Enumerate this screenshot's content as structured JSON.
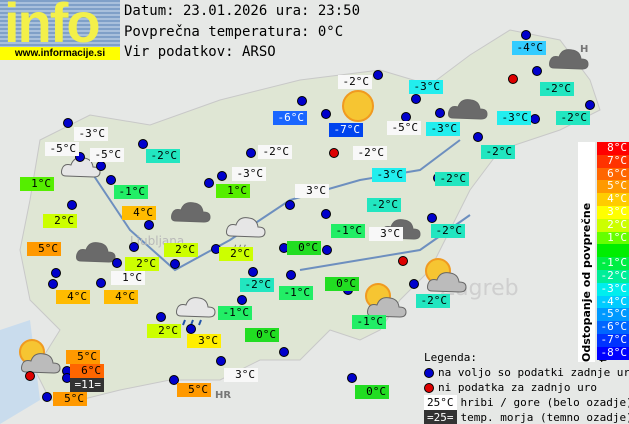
{
  "logo": {
    "text": "info",
    "url": "www.informacije.si"
  },
  "header": {
    "date_line": "Datum: 23.01.2026 ura: 23:50",
    "avg_line": "Povprečna temperatura: 0°C",
    "source_line": "Vir podatkov: ARSO"
  },
  "colors": {
    "white": "#f8f8f8",
    "blue7": "#0044ee",
    "blue6": "#1a66ff",
    "blue4": "#33ccff",
    "cyan3": "#22eeee",
    "teal2": "#22e6c0",
    "green_1": "#22ee66",
    "green0": "#22dd22",
    "green1": "#55ee00",
    "yg2": "#ccff00",
    "yellow3": "#ffee00",
    "or4": "#ffbb00",
    "or5": "#ff9900",
    "or6": "#ff6600",
    "dark": "#333333"
  },
  "stations": [
    {
      "t": "-4°C",
      "c": "blue4"
    },
    {
      "t": "-2°C",
      "c": "white"
    },
    {
      "t": "-3°C",
      "c": "cyan3"
    },
    {
      "t": "-2°C",
      "c": "teal2"
    },
    {
      "t": "-6°C",
      "c": "blue6"
    },
    {
      "t": "-7°C",
      "c": "blue7"
    },
    {
      "t": "-5°C",
      "c": "white"
    },
    {
      "t": "-3°C",
      "c": "cyan3"
    },
    {
      "t": "-3°C",
      "c": "cyan3"
    },
    {
      "t": "-2°C",
      "c": "teal2"
    },
    {
      "t": "-3°C",
      "c": "white"
    },
    {
      "t": "-5°C",
      "c": "white"
    },
    {
      "t": "-5°C",
      "c": "white"
    },
    {
      "t": "-2°C",
      "c": "teal2"
    },
    {
      "t": "-2°C",
      "c": "white"
    },
    {
      "t": "-2°C",
      "c": "white"
    },
    {
      "t": "-2°C",
      "c": "teal2"
    },
    {
      "t": "-3°C",
      "c": "cyan3"
    },
    {
      "t": "-2°C",
      "c": "teal2"
    },
    {
      "t": "-3°C",
      "c": "white"
    },
    {
      "t": "1°C",
      "c": "green1"
    },
    {
      "t": "-1°C",
      "c": "green_1"
    },
    {
      "t": "1°C",
      "c": "green1"
    },
    {
      "t": "3°C",
      "c": "white"
    },
    {
      "t": "-2°C",
      "c": "teal2"
    },
    {
      "t": "2°C",
      "c": "yg2"
    },
    {
      "t": "4°C",
      "c": "or4"
    },
    {
      "t": "-1°C",
      "c": "green_1"
    },
    {
      "t": "3°C",
      "c": "white"
    },
    {
      "t": "-2°C",
      "c": "teal2"
    },
    {
      "t": "5°C",
      "c": "or5"
    },
    {
      "t": "0°C",
      "c": "green0"
    },
    {
      "t": "2°C",
      "c": "yg2"
    },
    {
      "t": "2°C",
      "c": "yg2"
    },
    {
      "t": "2°C",
      "c": "yg2"
    },
    {
      "t": "1°C",
      "c": "white"
    },
    {
      "t": "4°C",
      "c": "or4"
    },
    {
      "t": "4°C",
      "c": "or4"
    },
    {
      "t": "-2°C",
      "c": "teal2"
    },
    {
      "t": "-1°C",
      "c": "green_1"
    },
    {
      "t": "0°C",
      "c": "green0"
    },
    {
      "t": "-1°C",
      "c": "green_1"
    },
    {
      "t": "-1°C",
      "c": "green_1"
    },
    {
      "t": "-2°C",
      "c": "teal2"
    },
    {
      "t": "2°C",
      "c": "yg2"
    },
    {
      "t": "3°C",
      "c": "yellow3"
    },
    {
      "t": "0°C",
      "c": "green0"
    },
    {
      "t": "5°C",
      "c": "or5"
    },
    {
      "t": "6°C",
      "c": "or6"
    },
    {
      "t": "=11=",
      "c": "dark"
    },
    {
      "t": "5°C",
      "c": "or5"
    },
    {
      "t": "3°C",
      "c": "white"
    },
    {
      "t": "5°C",
      "c": "or5"
    },
    {
      "t": "0°C",
      "c": "green0"
    }
  ],
  "weather_icons": [
    "cloudy-dark",
    "sunny",
    "cloudy-dark",
    "cloudy-dark",
    "cloudy-light",
    "drizzle",
    "cloudy-dark",
    "rain",
    "partly-cloudy",
    "partly-cloudy",
    "cloudy-dark",
    "partly-cloudy"
  ],
  "scale": {
    "title": "Odstopanje od povprečne temperature:",
    "items": [
      {
        "t": "8°C",
        "c": "#ff0000"
      },
      {
        "t": "7°C",
        "c": "#ff3300"
      },
      {
        "t": "6°C",
        "c": "#ff6600"
      },
      {
        "t": "5°C",
        "c": "#ff9900"
      },
      {
        "t": "4°C",
        "c": "#ffcc00"
      },
      {
        "t": "3°C",
        "c": "#ffff00"
      },
      {
        "t": "2°C",
        "c": "#ccff00"
      },
      {
        "t": "1°C",
        "c": "#66ff00"
      },
      {
        "t": "",
        "c": "#00ee00"
      },
      {
        "t": "-1°C",
        "c": "#00ee44"
      },
      {
        "t": "-2°C",
        "c": "#00ee99"
      },
      {
        "t": "-3°C",
        "c": "#00eeee"
      },
      {
        "t": "-4°C",
        "c": "#00ccff"
      },
      {
        "t": "-5°C",
        "c": "#0099ff"
      },
      {
        "t": "-6°C",
        "c": "#0066ff"
      },
      {
        "t": "-7°C",
        "c": "#0033ff"
      },
      {
        "t": "-8°C",
        "c": "#0000ff"
      }
    ]
  },
  "legend": {
    "title": "Legenda:",
    "blue": "na voljo so podatki zadnje ure",
    "red": "ni podatka za zadnjo uro",
    "white_sample": "25°C",
    "white_text": "hribi / gore (belo ozadje)",
    "dark_sample": "=25=",
    "dark_text": "temp. morja (temno ozadje)"
  },
  "map_labels": {
    "city": "Zagreb",
    "hr": "HR",
    "h": "H",
    "lj": "Ljubljana"
  }
}
